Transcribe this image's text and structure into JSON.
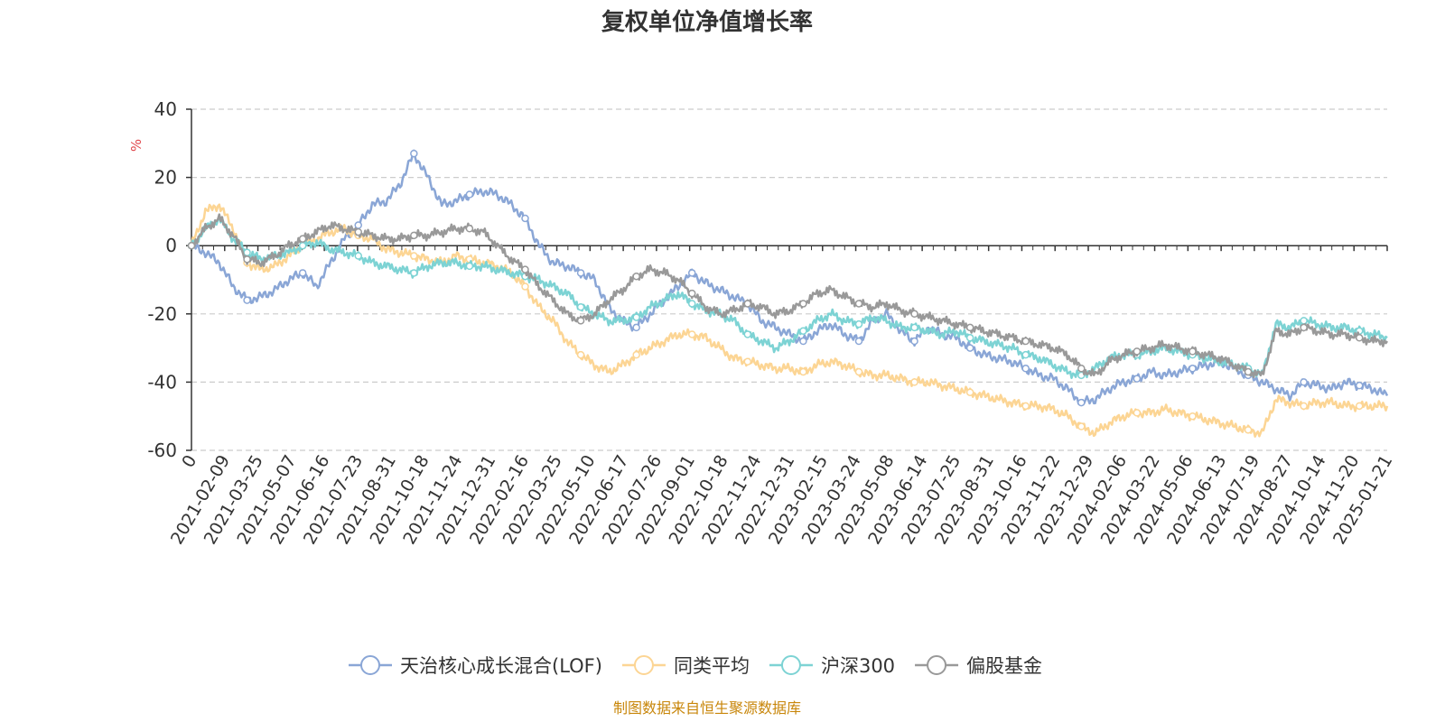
{
  "source": {
    "text": "制图数据来自恒生聚源数据库",
    "color": "#c8860a"
  },
  "chart_data": {
    "type": "line",
    "title": "复权单位净值增长率",
    "ylabel": "%",
    "ylabel_color": "#e0474c",
    "xlabel": "",
    "ylim": [
      -60,
      40
    ],
    "y_ticks": [
      40,
      20,
      0,
      -20,
      -40,
      -60
    ],
    "grid": true,
    "legend_position": "bottom",
    "x_tick_labels": [
      "0",
      "2021-02-09",
      "2021-03-25",
      "2021-05-07",
      "2021-06-16",
      "2021-07-23",
      "2021-08-31",
      "2021-10-18",
      "2021-11-24",
      "2021-12-31",
      "2022-02-16",
      "2022-03-25",
      "2022-05-10",
      "2022-06-17",
      "2022-07-26",
      "2022-09-01",
      "2022-10-18",
      "2022-11-24",
      "2022-12-31",
      "2023-02-15",
      "2023-03-24",
      "2023-05-08",
      "2023-06-14",
      "2023-07-25",
      "2023-08-31",
      "2023-10-16",
      "2023-11-22",
      "2023-12-29",
      "2024-02-06",
      "2024-03-22",
      "2024-05-06",
      "2024-06-13",
      "2024-07-19",
      "2024-08-27",
      "2024-10-14",
      "2024-11-20",
      "2025-01-21"
    ],
    "series": [
      {
        "name": "天治核心成长混合(LOF)",
        "color": "#8aa6d6",
        "values": [
          0,
          -2,
          -5,
          -12,
          -16,
          -15,
          -13,
          -10,
          -8,
          -12,
          -5,
          2,
          6,
          12,
          13,
          18,
          27,
          20,
          12,
          13,
          15,
          16,
          15,
          12,
          8,
          0,
          -5,
          -6,
          -8,
          -10,
          -18,
          -22,
          -24,
          -20,
          -16,
          -12,
          -8,
          -11,
          -13,
          -15,
          -17,
          -22,
          -24,
          -26,
          -28,
          -25,
          -23,
          -26,
          -28,
          -22,
          -20,
          -25,
          -28,
          -24,
          -26,
          -27,
          -30,
          -32,
          -33,
          -34,
          -36,
          -38,
          -39,
          -42,
          -46,
          -45,
          -42,
          -40,
          -39,
          -37,
          -38,
          -37,
          -36,
          -35,
          -34,
          -36,
          -38,
          -40,
          -42,
          -44,
          -40,
          -41,
          -42,
          -40,
          -41,
          -42,
          -44
        ]
      },
      {
        "name": "同类平均",
        "color": "#fcd594",
        "values": [
          0,
          10,
          12,
          5,
          -5,
          -7,
          -6,
          -3,
          0,
          2,
          4,
          5,
          3,
          2,
          -1,
          -2,
          -3,
          -4,
          -5,
          -3,
          -4,
          -5,
          -6,
          -8,
          -12,
          -18,
          -22,
          -28,
          -32,
          -35,
          -37,
          -35,
          -32,
          -30,
          -28,
          -26,
          -26,
          -27,
          -30,
          -33,
          -34,
          -35,
          -36,
          -36,
          -37,
          -35,
          -34,
          -35,
          -37,
          -38,
          -38,
          -39,
          -40,
          -40,
          -41,
          -42,
          -43,
          -44,
          -45,
          -46,
          -47,
          -47,
          -48,
          -50,
          -53,
          -55,
          -52,
          -50,
          -49,
          -49,
          -48,
          -49,
          -50,
          -51,
          -52,
          -53,
          -54,
          -55,
          -45,
          -46,
          -47,
          -46,
          -46,
          -47,
          -47,
          -47,
          -47
        ]
      },
      {
        "name": "沪深300",
        "color": "#7dd3d4",
        "values": [
          0,
          5,
          8,
          2,
          -2,
          -4,
          -3,
          -2,
          0,
          1,
          -1,
          -2,
          -3,
          -5,
          -6,
          -7,
          -8,
          -6,
          -5,
          -5,
          -6,
          -6,
          -7,
          -8,
          -9,
          -10,
          -12,
          -14,
          -18,
          -20,
          -22,
          -22,
          -21,
          -18,
          -16,
          -14,
          -17,
          -19,
          -20,
          -22,
          -26,
          -28,
          -30,
          -28,
          -25,
          -22,
          -20,
          -22,
          -23,
          -21,
          -22,
          -24,
          -24,
          -25,
          -26,
          -25,
          -27,
          -28,
          -29,
          -30,
          -32,
          -33,
          -35,
          -37,
          -38,
          -36,
          -33,
          -32,
          -32,
          -31,
          -30,
          -31,
          -32,
          -33,
          -34,
          -35,
          -36,
          -38,
          -23,
          -24,
          -22,
          -23,
          -24,
          -24,
          -25,
          -26,
          -27
        ]
      },
      {
        "name": "偏股基金",
        "color": "#999999",
        "values": [
          0,
          5,
          8,
          3,
          -4,
          -5,
          -3,
          0,
          2,
          4,
          6,
          5,
          4,
          3,
          2,
          2,
          3,
          3,
          4,
          5,
          5,
          4,
          0,
          -4,
          -7,
          -12,
          -16,
          -20,
          -22,
          -20,
          -16,
          -13,
          -9,
          -7,
          -8,
          -10,
          -14,
          -18,
          -20,
          -19,
          -17,
          -18,
          -20,
          -19,
          -17,
          -14,
          -13,
          -15,
          -17,
          -18,
          -17,
          -19,
          -20,
          -21,
          -22,
          -23,
          -24,
          -25,
          -26,
          -27,
          -28,
          -29,
          -30,
          -32,
          -36,
          -38,
          -34,
          -32,
          -31,
          -30,
          -29,
          -30,
          -31,
          -32,
          -33,
          -35,
          -37,
          -38,
          -25,
          -26,
          -24,
          -25,
          -26,
          -26,
          -27,
          -28,
          -28
        ]
      }
    ]
  }
}
